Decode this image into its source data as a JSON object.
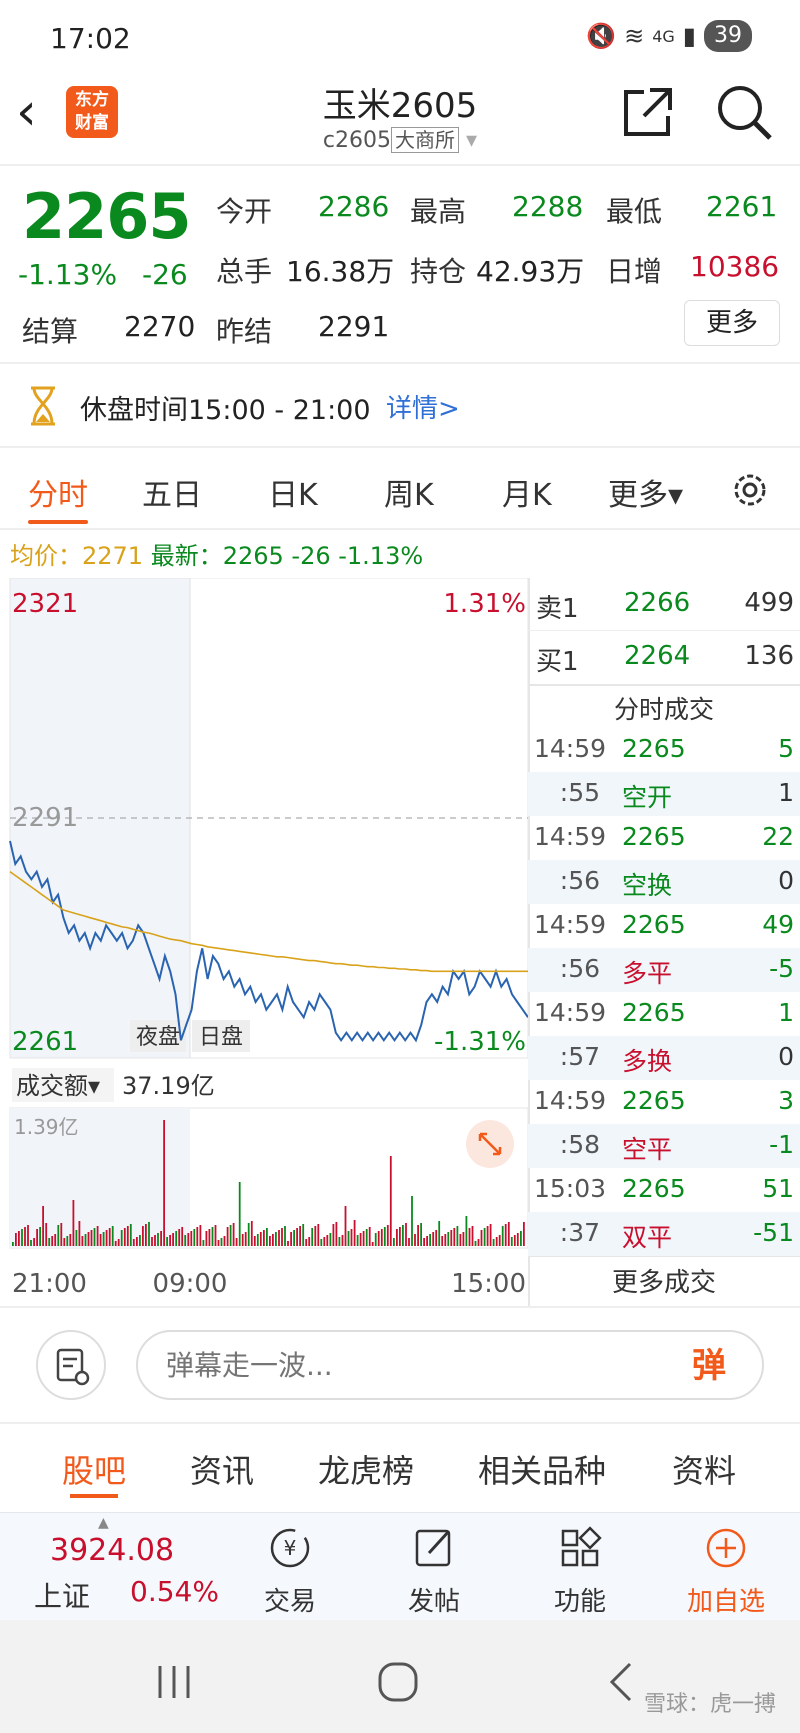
{
  "status": {
    "time": "17:02",
    "network": "4G",
    "battery": "39"
  },
  "header": {
    "logo_line1": "东方",
    "logo_line2": "财富",
    "title": "玉米2605",
    "code": "c2605",
    "exchange": "大商所"
  },
  "quote": {
    "price": "2265",
    "change_pct": "-1.13%",
    "change_abs": "-26",
    "open_label": "今开",
    "open": "2286",
    "high_label": "最高",
    "high": "2288",
    "low_label": "最低",
    "low": "2261",
    "volume_label": "总手",
    "volume": "16.38万",
    "oi_label": "持仓",
    "oi": "42.93万",
    "daily_inc_label": "日增",
    "daily_inc": "10386",
    "settle_label": "结算",
    "settle": "2270",
    "prev_settle_label": "昨结",
    "prev_settle": "2291",
    "more_label": "更多"
  },
  "notice": {
    "text": "休盘时间15:00 - 21:00",
    "link": "详情>"
  },
  "chart_tabs": [
    "分时",
    "五日",
    "日K",
    "周K",
    "月K",
    "更多▾"
  ],
  "avg_line": {
    "avg": "均价：2271",
    "latest": "最新：2265 -26 -1.13%"
  },
  "chart_data": {
    "type": "line",
    "y_top": "2321",
    "y_top_pct": "1.31%",
    "y_ref": "2291",
    "y_bottom": "2261",
    "y_bottom_pct": "-1.31%",
    "ylim": [
      2261,
      2321
    ],
    "session_labels": [
      "夜盘",
      "日盘"
    ],
    "x_ticks": [
      "21:00",
      "09:00",
      "15:00"
    ],
    "series": [
      {
        "values": [
          2288,
          2285,
          2286,
          2284,
          2283,
          2284,
          2282,
          2283,
          2280,
          2281,
          2278,
          2276,
          2277,
          2275,
          2276,
          2274,
          2276,
          2275,
          2277,
          2276,
          2275,
          2276,
          2274,
          2275,
          2277,
          2276,
          2274,
          2272,
          2270,
          2273,
          2271,
          2268,
          2262,
          2264,
          2266,
          2271,
          2274,
          2270,
          2273,
          2272,
          2270,
          2271,
          2269,
          2270,
          2268,
          2269,
          2267,
          2268,
          2266,
          2267,
          2268,
          2266,
          2269,
          2267,
          2266,
          2265,
          2267,
          2266,
          2268,
          2267,
          2266,
          2263,
          2262,
          2263,
          2262,
          2263,
          2262,
          2263,
          2262,
          2263,
          2262,
          2263,
          2262,
          2263,
          2262,
          2263,
          2262,
          2264,
          2267,
          2268,
          2267,
          2269,
          2268,
          2271,
          2270,
          2271,
          2268,
          2269,
          2271,
          2270,
          2269,
          2271,
          2269,
          2270,
          2268,
          2267,
          2266,
          2265
        ]
      },
      {
        "values": [
          2284,
          2283.5,
          2283,
          2282.5,
          2282,
          2281.5,
          2281,
          2280.5,
          2280,
          2279.5,
          2279,
          2278.8,
          2278.6,
          2278.4,
          2278.2,
          2278,
          2277.8,
          2277.6,
          2277.4,
          2277.2,
          2277,
          2276.8,
          2276.7,
          2276.5,
          2276.3,
          2276.1,
          2276,
          2275.8,
          2275.6,
          2275.4,
          2275.2,
          2275.1,
          2275,
          2274.8,
          2274.6,
          2274.5,
          2274.4,
          2274.2,
          2274.1,
          2274,
          2273.9,
          2273.8,
          2273.7,
          2273.6,
          2273.5,
          2273.4,
          2273.3,
          2273.2,
          2273.1,
          2273,
          2272.9,
          2272.9,
          2272.8,
          2272.7,
          2272.6,
          2272.5,
          2272.4,
          2272.4,
          2272.3,
          2272.2,
          2272.1,
          2272,
          2272,
          2271.9,
          2271.8,
          2271.8,
          2271.7,
          2271.6,
          2271.6,
          2271.5,
          2271.5,
          2271.4,
          2271.4,
          2271.3,
          2271.3,
          2271.2,
          2271.2,
          2271.1,
          2271.1,
          2271,
          2271,
          2271,
          2271,
          2271,
          2271,
          2271,
          2271,
          2271,
          2271,
          2271,
          2271,
          2271,
          2271,
          2271,
          2271,
          2271,
          2271,
          2271
        ]
      }
    ],
    "volume_label": "成交额▾",
    "volume_value": "37.19亿",
    "volume_max": "1.39亿"
  },
  "book": {
    "ask_label": "卖1",
    "ask_price": "2266",
    "ask_vol": "499",
    "bid_label": "买1",
    "bid_price": "2264",
    "bid_vol": "136",
    "trades_title": "分时成交",
    "trades": [
      {
        "time": "14:59",
        "price": "2265",
        "vol": "5"
      },
      {
        "time": ":55",
        "price": "空开",
        "vol": "1"
      },
      {
        "time": "14:59",
        "price": "2265",
        "vol": "22"
      },
      {
        "time": ":56",
        "price": "空换",
        "vol": "0"
      },
      {
        "time": "14:59",
        "price": "2265",
        "vol": "49"
      },
      {
        "time": ":56",
        "price": "多平",
        "vol": "-5"
      },
      {
        "time": "14:59",
        "price": "2265",
        "vol": "1"
      },
      {
        "time": ":57",
        "price": "多换",
        "vol": "0"
      },
      {
        "time": "14:59",
        "price": "2265",
        "vol": "3"
      },
      {
        "time": ":58",
        "price": "空平",
        "vol": "-1"
      },
      {
        "time": "15:03",
        "price": "2265",
        "vol": "51"
      },
      {
        "time": ":37",
        "price": "双平",
        "vol": "-51"
      }
    ],
    "more_trades": "更多成交"
  },
  "comment": {
    "placeholder": "弹幕走一波...",
    "button": "弹"
  },
  "sub_tabs": [
    "股吧",
    "资讯",
    "龙虎榜",
    "相关品种",
    "资料"
  ],
  "bottom_nav": {
    "index_value": "3924.08",
    "index_name": "上证",
    "index_pct": "0.54%",
    "items": [
      "交易",
      "发帖",
      "功能",
      "加自选"
    ]
  },
  "watermark": "雪球：虎一搏",
  "colors": {
    "accent": "#f25a1b",
    "up": "#c8102e",
    "down": "#0a8a1e",
    "avg": "#d9a21b",
    "price_line": "#2a64b0"
  }
}
